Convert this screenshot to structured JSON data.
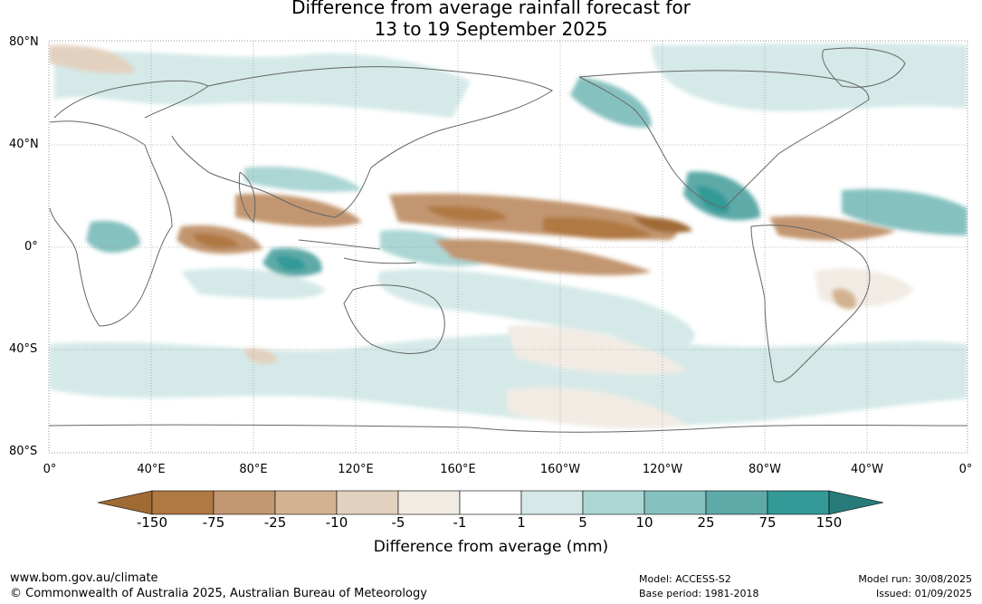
{
  "title_line1": "Difference from average rainfall forecast for",
  "title_line2": "13 to 19 September 2025",
  "map": {
    "lat_labels": [
      "80°N",
      "40°N",
      "0°",
      "40°S",
      "80°S"
    ],
    "lon_labels": [
      "0°",
      "40°E",
      "80°E",
      "120°E",
      "160°E",
      "160°W",
      "120°W",
      "80°W",
      "40°W",
      "0°"
    ]
  },
  "colorbar": {
    "ticks": [
      "-150",
      "-75",
      "-25",
      "-10",
      "-5",
      "-1",
      "1",
      "5",
      "10",
      "25",
      "75",
      "150"
    ],
    "colors": [
      "#a06a35",
      "#b07843",
      "#c29670",
      "#d3b292",
      "#e3d1bf",
      "#f1ebe4",
      "#ffffff",
      "#d4e9e8",
      "#acd6d4",
      "#85c1bf",
      "#5daaa8",
      "#339a97",
      "#277b79"
    ],
    "title": "Difference from average (mm)"
  },
  "footer": {
    "website": "www.bom.gov.au/climate",
    "copyright": "© Commonwealth of Australia 2025, Australian Bureau of Meteorology",
    "model": "Model: ACCESS-S2",
    "base_period": "Base period: 1981-2018",
    "model_run": "Model run: 30/08/2025",
    "issued": "Issued: 01/09/2025"
  }
}
